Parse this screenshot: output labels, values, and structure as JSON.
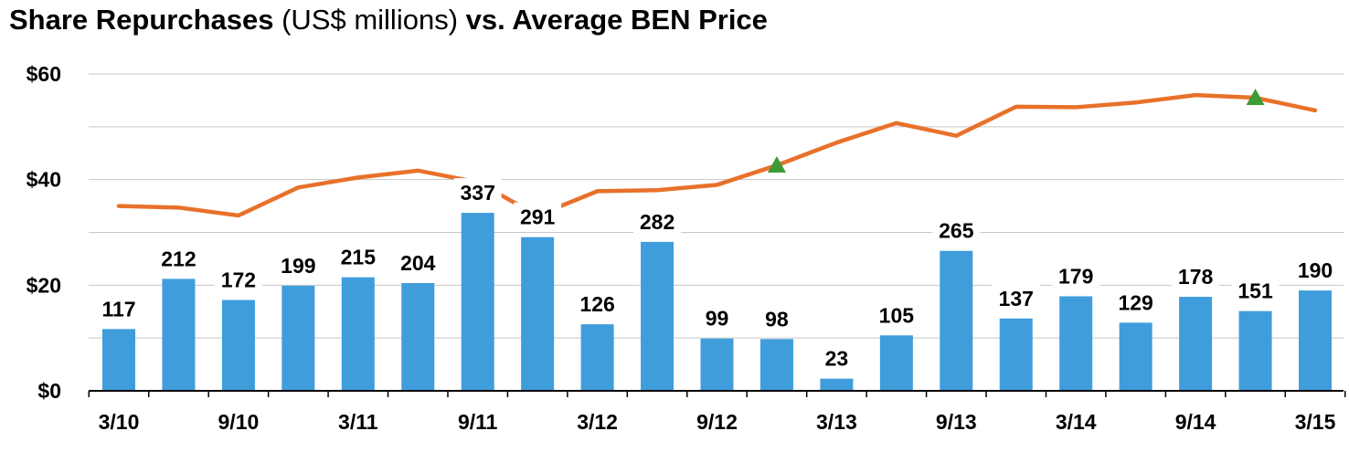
{
  "title": {
    "part1": "Share Repurchases",
    "part2": " (US$ millions) ",
    "part3": "vs. Average BEN Price"
  },
  "chart_data": {
    "type": "bar",
    "categories": [
      "3/10",
      "",
      "9/10",
      "",
      "3/11",
      "",
      "9/11",
      "",
      "3/12",
      "",
      "9/12",
      "",
      "3/13",
      "",
      "9/13",
      "",
      "3/14",
      "",
      "9/14",
      "",
      "3/15"
    ],
    "y_tick_labels": [
      "$0",
      "$20",
      "$40",
      "$60"
    ],
    "ylim": [
      0,
      60
    ],
    "series": [
      {
        "values": [
          117,
          212,
          172,
          199,
          215,
          204,
          337,
          291,
          126,
          282,
          99,
          98,
          23,
          105,
          265,
          137,
          179,
          129,
          178,
          151,
          190
        ],
        "color": "#3f9ddc"
      },
      {
        "type": "line",
        "values": [
          35,
          34.7,
          33.2,
          38.5,
          40.4,
          41.7,
          39.5,
          33.2,
          37.8,
          38,
          39,
          42.7,
          47,
          50.7,
          48.3,
          53.8,
          53.7,
          54.6,
          56,
          55.5,
          53.1
        ],
        "color": "#e8712a",
        "markers": [
          7,
          11,
          19
        ],
        "marker_color": "#3e9a35"
      }
    ],
    "grid": true
  }
}
